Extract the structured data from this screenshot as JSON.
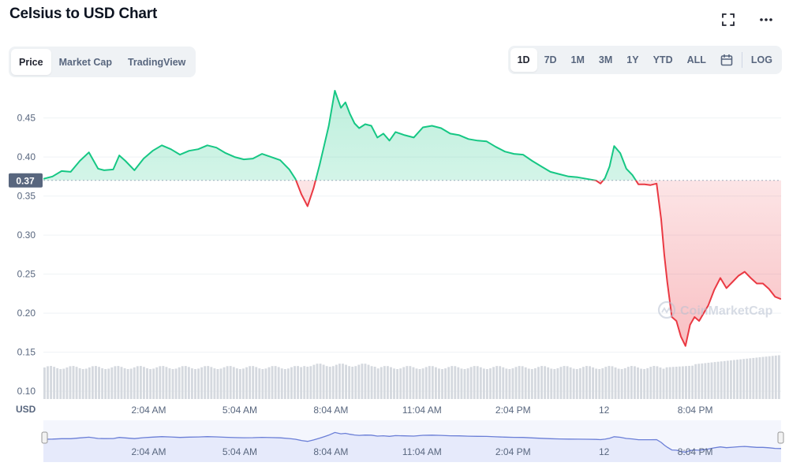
{
  "title": "Celsius to USD Chart",
  "header_icons": {
    "fullscreen": "fullscreen-icon",
    "more": "more-dots-icon"
  },
  "tabs": [
    {
      "label": "Price",
      "active": true
    },
    {
      "label": "Market Cap",
      "active": false
    },
    {
      "label": "TradingView",
      "active": false
    }
  ],
  "ranges": [
    {
      "label": "1D",
      "active": true
    },
    {
      "label": "7D",
      "active": false
    },
    {
      "label": "1M",
      "active": false
    },
    {
      "label": "3M",
      "active": false
    },
    {
      "label": "1Y",
      "active": false
    },
    {
      "label": "YTD",
      "active": false
    },
    {
      "label": "ALL",
      "active": false
    }
  ],
  "calendar_icon": "calendar-icon",
  "log_label": "LOG",
  "currency_label": "USD",
  "watermark": "CoinMarketCap",
  "colors": {
    "up": "#16c784",
    "down": "#ea3943",
    "navigator_line": "#6b7fd7",
    "navigator_fill": "#e6eafb",
    "volume": "#d5d9df",
    "grid": "#eff2f5"
  },
  "chart_data": {
    "type": "line",
    "title": "Celsius to USD Chart",
    "xlabel": "",
    "ylabel": "USD",
    "ylim": [
      0.09,
      0.49
    ],
    "yticks": [
      "0.45",
      "0.40",
      "0.35",
      "0.30",
      "0.25",
      "0.20",
      "0.15",
      "0.10"
    ],
    "ytick_values": [
      0.45,
      0.4,
      0.35,
      0.3,
      0.25,
      0.2,
      0.15,
      0.1
    ],
    "xticks": [
      "2:04 AM",
      "5:04 AM",
      "8:04 AM",
      "11:04 AM",
      "2:04 PM",
      "12",
      "8:04 PM"
    ],
    "xtick_hours": [
      2.07,
      5.07,
      8.07,
      11.07,
      14.07,
      17.07,
      20.07
    ],
    "x_range_hours": [
      -1.4,
      22.9
    ],
    "baseline": 0.37,
    "baseline_label": "0.37",
    "series": [
      {
        "x_hours": [
          -1.4,
          -1.1,
          -0.8,
          -0.5,
          -0.2,
          0.1,
          0.4,
          0.6,
          0.9,
          1.1,
          1.3,
          1.6,
          1.9,
          2.2,
          2.5,
          2.8,
          3.1,
          3.4,
          3.7,
          4.0,
          4.3,
          4.6,
          4.9,
          5.2,
          5.5,
          5.8,
          6.1,
          6.4,
          6.7,
          6.9,
          7.1,
          7.3,
          7.5,
          7.7,
          7.85,
          8.0,
          8.2,
          8.4,
          8.55,
          8.7,
          8.85,
          9.0,
          9.2,
          9.4,
          9.6,
          9.8,
          10.0,
          10.2,
          10.5,
          10.8,
          11.1,
          11.4,
          11.7,
          12.0,
          12.3,
          12.6,
          12.9,
          13.2,
          13.5,
          13.8,
          14.1,
          14.4,
          14.7,
          15.0,
          15.3,
          15.6,
          15.9,
          16.2,
          16.5,
          16.8,
          16.95,
          17.1,
          17.25,
          17.4,
          17.6,
          17.8,
          18.0,
          18.2,
          18.4,
          18.6,
          18.8,
          18.95,
          19.05,
          19.15,
          19.3,
          19.45,
          19.6,
          19.75,
          19.9,
          20.05,
          20.2,
          20.35,
          20.5,
          20.7,
          20.9,
          21.1,
          21.3,
          21.5,
          21.7,
          21.9,
          22.1,
          22.3,
          22.5,
          22.7,
          22.9
        ],
        "values": [
          0.372,
          0.375,
          0.382,
          0.381,
          0.395,
          0.406,
          0.385,
          0.383,
          0.384,
          0.402,
          0.395,
          0.383,
          0.398,
          0.408,
          0.415,
          0.41,
          0.403,
          0.408,
          0.41,
          0.415,
          0.412,
          0.405,
          0.4,
          0.397,
          0.398,
          0.404,
          0.4,
          0.396,
          0.384,
          0.372,
          0.352,
          0.337,
          0.36,
          0.39,
          0.415,
          0.44,
          0.485,
          0.463,
          0.47,
          0.455,
          0.443,
          0.437,
          0.442,
          0.44,
          0.425,
          0.43,
          0.421,
          0.432,
          0.428,
          0.425,
          0.438,
          0.44,
          0.437,
          0.43,
          0.428,
          0.423,
          0.421,
          0.42,
          0.413,
          0.407,
          0.404,
          0.403,
          0.395,
          0.388,
          0.381,
          0.378,
          0.375,
          0.374,
          0.372,
          0.37,
          0.366,
          0.373,
          0.388,
          0.414,
          0.405,
          0.385,
          0.377,
          0.365,
          0.365,
          0.364,
          0.366,
          0.32,
          0.275,
          0.24,
          0.195,
          0.19,
          0.17,
          0.158,
          0.185,
          0.195,
          0.19,
          0.2,
          0.21,
          0.23,
          0.245,
          0.232,
          0.24,
          0.248,
          0.253,
          0.245,
          0.238,
          0.238,
          0.231,
          0.221,
          0.218
        ]
      }
    ],
    "volume": {
      "note": "unlabeled bar volume series"
    },
    "navigator": {
      "xticks": [
        "2:04 AM",
        "5:04 AM",
        "8:04 AM",
        "11:04 AM",
        "2:04 PM",
        "12",
        "8:04 PM"
      ]
    }
  }
}
